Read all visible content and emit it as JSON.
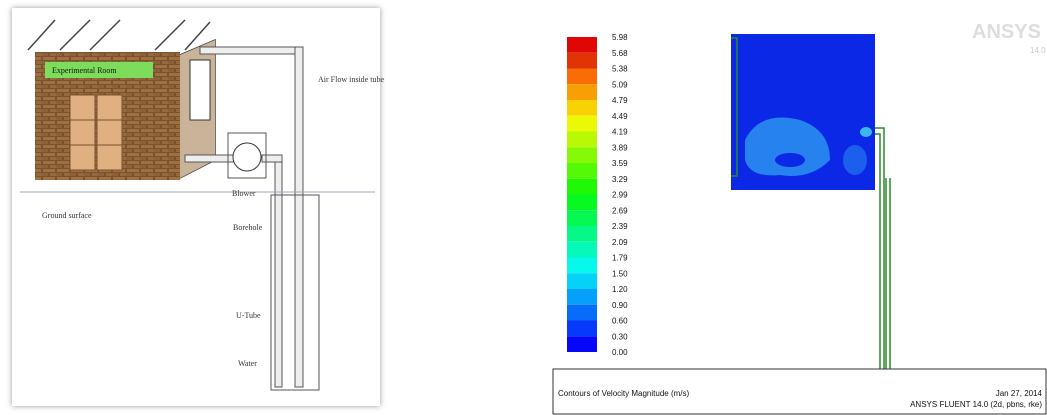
{
  "schematic": {
    "room_label": "Experimental Room",
    "labels": [
      "Air Flow inside tube",
      "Blower",
      "Ground surface",
      "Borehole",
      "U-Tube",
      "Water"
    ]
  },
  "contour": {
    "legend_labels": [
      "5.98",
      "5.68",
      "5.38",
      "5.09",
      "4.79",
      "4.49",
      "4.19",
      "3.89",
      "3.59",
      "3.29",
      "2.99",
      "2.69",
      "2.39",
      "2.09",
      "1.79",
      "1.50",
      "1.20",
      "0.90",
      "0.60",
      "0.30",
      "0.00"
    ],
    "logo": "ANSYS",
    "logo_version": "14.0",
    "footer": {
      "title": "Contours of Velocity Magnitude (m/s)",
      "date": "Jan 27, 2014",
      "solver": "ANSYS FLUENT 14.0 (2d, pbns, rke)"
    }
  }
}
